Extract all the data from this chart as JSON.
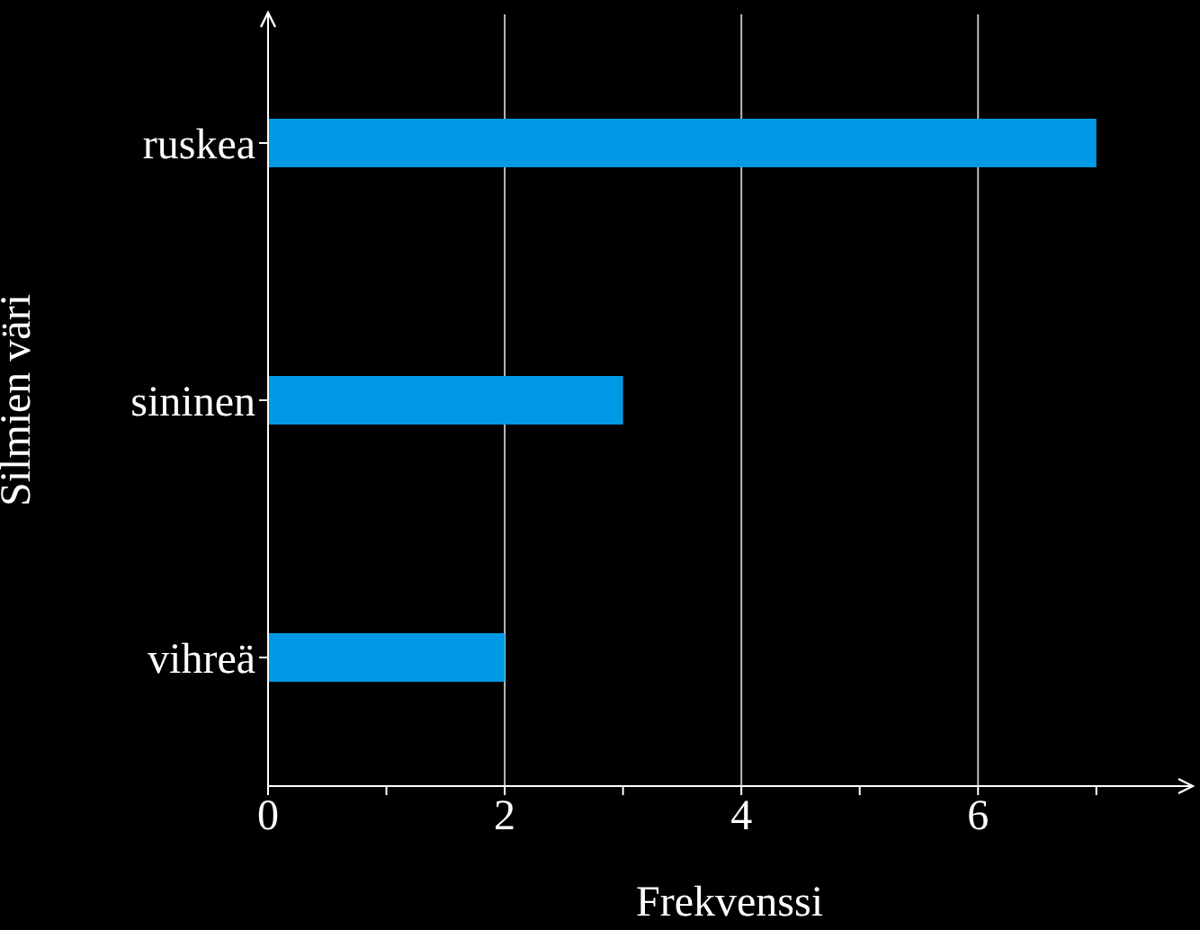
{
  "chart_data": {
    "type": "bar",
    "orientation": "horizontal",
    "xlabel": "Frekvenssi",
    "ylabel": "Silmien väri",
    "categories": [
      "ruskea",
      "sininen",
      "vihreä"
    ],
    "values": [
      7,
      3,
      2
    ],
    "color": "#0099e6",
    "xlim": [
      0,
      7.8
    ],
    "xticks": [
      0,
      {
        "value": 1,
        "label": null
      },
      2,
      {
        "value": 3,
        "label": null
      },
      4,
      {
        "value": 5,
        "label": null
      },
      6,
      {
        "value": 7,
        "label": null
      }
    ],
    "grid": "x"
  }
}
